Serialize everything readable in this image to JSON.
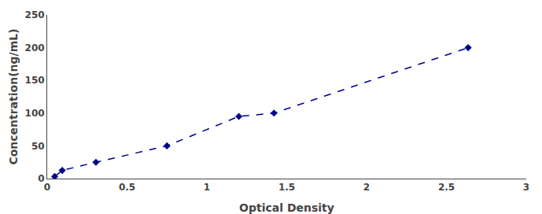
{
  "chart_data": {
    "type": "line",
    "x": [
      0.047,
      0.094,
      0.305,
      0.75,
      1.2,
      1.42,
      2.636
    ],
    "values": [
      3.125,
      12.5,
      25,
      50,
      95,
      100,
      200
    ],
    "color": "#00008B",
    "marker": "diamond",
    "line_style": "dashed",
    "xlabel": "Optical Density",
    "ylabel": "Concentration(ng/mL)",
    "xlim": [
      0,
      3
    ],
    "ylim": [
      0,
      250
    ],
    "xticks": [
      0,
      0.5,
      1,
      1.5,
      2,
      2.5,
      3
    ],
    "yticks": [
      0,
      50,
      100,
      150,
      200,
      250
    ],
    "grid": false
  }
}
